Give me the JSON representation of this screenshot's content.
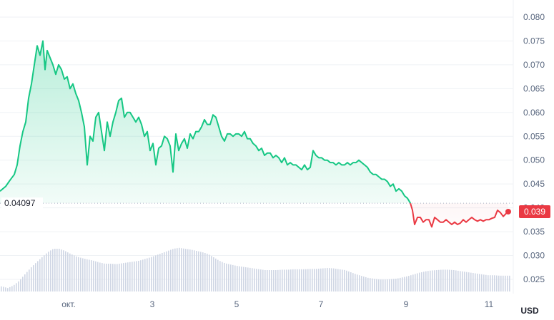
{
  "chart_data": {
    "type": "area",
    "unit_label": "USD",
    "reference_value_label": "0.04097",
    "reference_value": 0.04097,
    "last_value_label": "0.039",
    "last_value": 0.0392,
    "ylim": [
      0.0235,
      0.0815
    ],
    "xlim": [
      0,
      775
    ],
    "y_ticks": [
      {
        "label": "0.080",
        "value": 0.08
      },
      {
        "label": "0.075",
        "value": 0.075
      },
      {
        "label": "0.070",
        "value": 0.07
      },
      {
        "label": "0.065",
        "value": 0.065
      },
      {
        "label": "0.060",
        "value": 0.06
      },
      {
        "label": "0.055",
        "value": 0.055
      },
      {
        "label": "0.050",
        "value": 0.05
      },
      {
        "label": "0.045",
        "value": 0.045
      },
      {
        "label": "0.040",
        "value": 0.04
      },
      {
        "label": "0.035",
        "value": 0.035
      },
      {
        "label": "0.030",
        "value": 0.03
      },
      {
        "label": "0.025",
        "value": 0.025
      }
    ],
    "x_ticks": [
      {
        "label": "окт.",
        "x": 96
      },
      {
        "label": "3",
        "x": 213
      },
      {
        "label": "5",
        "x": 331
      },
      {
        "label": "7",
        "x": 449
      },
      {
        "label": "9",
        "x": 568
      },
      {
        "label": "11",
        "x": 684
      }
    ],
    "series": [
      {
        "colors": {
          "above": "#16c784",
          "below": "#ea3943"
        },
        "points": [
          [
            0,
            0.0435
          ],
          [
            8,
            0.0445
          ],
          [
            14,
            0.0458
          ],
          [
            20,
            0.047
          ],
          [
            24,
            0.049
          ],
          [
            28,
            0.053
          ],
          [
            32,
            0.056
          ],
          [
            36,
            0.058
          ],
          [
            40,
            0.063
          ],
          [
            44,
            0.066
          ],
          [
            48,
            0.07
          ],
          [
            52,
            0.074
          ],
          [
            56,
            0.072
          ],
          [
            60,
            0.075
          ],
          [
            63,
            0.069
          ],
          [
            66,
            0.073
          ],
          [
            70,
            0.0715
          ],
          [
            74,
            0.07
          ],
          [
            78,
            0.068
          ],
          [
            82,
            0.07
          ],
          [
            86,
            0.069
          ],
          [
            90,
            0.067
          ],
          [
            94,
            0.0675
          ],
          [
            98,
            0.065
          ],
          [
            102,
            0.066
          ],
          [
            106,
            0.064
          ],
          [
            110,
            0.0625
          ],
          [
            114,
            0.06
          ],
          [
            118,
            0.057
          ],
          [
            122,
            0.049
          ],
          [
            126,
            0.055
          ],
          [
            130,
            0.054
          ],
          [
            134,
            0.059
          ],
          [
            138,
            0.06
          ],
          [
            142,
            0.056
          ],
          [
            146,
            0.052
          ],
          [
            150,
            0.058
          ],
          [
            154,
            0.055
          ],
          [
            158,
            0.058
          ],
          [
            162,
            0.06
          ],
          [
            166,
            0.0625
          ],
          [
            170,
            0.063
          ],
          [
            174,
            0.059
          ],
          [
            178,
            0.06
          ],
          [
            182,
            0.06
          ],
          [
            186,
            0.059
          ],
          [
            190,
            0.058
          ],
          [
            194,
            0.059
          ],
          [
            198,
            0.0575
          ],
          [
            202,
            0.055
          ],
          [
            206,
            0.056
          ],
          [
            210,
            0.052
          ],
          [
            214,
            0.0535
          ],
          [
            218,
            0.049
          ],
          [
            222,
            0.0525
          ],
          [
            226,
            0.053
          ],
          [
            230,
            0.055
          ],
          [
            234,
            0.0545
          ],
          [
            238,
            0.053
          ],
          [
            242,
            0.0475
          ],
          [
            246,
            0.0555
          ],
          [
            250,
            0.052
          ],
          [
            254,
            0.0535
          ],
          [
            258,
            0.0545
          ],
          [
            262,
            0.0525
          ],
          [
            266,
            0.0555
          ],
          [
            270,
            0.0545
          ],
          [
            274,
            0.056
          ],
          [
            278,
            0.056
          ],
          [
            282,
            0.057
          ],
          [
            286,
            0.0585
          ],
          [
            290,
            0.0575
          ],
          [
            294,
            0.0575
          ],
          [
            298,
            0.0595
          ],
          [
            302,
            0.059
          ],
          [
            306,
            0.057
          ],
          [
            310,
            0.055
          ],
          [
            314,
            0.054
          ],
          [
            318,
            0.0555
          ],
          [
            322,
            0.0555
          ],
          [
            326,
            0.055
          ],
          [
            330,
            0.0555
          ],
          [
            334,
            0.0555
          ],
          [
            338,
            0.055
          ],
          [
            342,
            0.056
          ],
          [
            346,
            0.0545
          ],
          [
            350,
            0.0545
          ],
          [
            354,
            0.0535
          ],
          [
            358,
            0.053
          ],
          [
            362,
            0.052
          ],
          [
            366,
            0.0525
          ],
          [
            370,
            0.051
          ],
          [
            374,
            0.0515
          ],
          [
            378,
            0.0515
          ],
          [
            382,
            0.0505
          ],
          [
            386,
            0.051
          ],
          [
            390,
            0.0505
          ],
          [
            394,
            0.0495
          ],
          [
            398,
            0.0505
          ],
          [
            402,
            0.049
          ],
          [
            406,
            0.0495
          ],
          [
            410,
            0.049
          ],
          [
            414,
            0.049
          ],
          [
            418,
            0.0485
          ],
          [
            422,
            0.048
          ],
          [
            426,
            0.049
          ],
          [
            430,
            0.048
          ],
          [
            434,
            0.0485
          ],
          [
            438,
            0.052
          ],
          [
            442,
            0.051
          ],
          [
            446,
            0.0505
          ],
          [
            450,
            0.0505
          ],
          [
            454,
            0.05
          ],
          [
            458,
            0.05
          ],
          [
            462,
            0.0495
          ],
          [
            466,
            0.0495
          ],
          [
            470,
            0.049
          ],
          [
            474,
            0.0495
          ],
          [
            478,
            0.049
          ],
          [
            482,
            0.049
          ],
          [
            486,
            0.0495
          ],
          [
            490,
            0.049
          ],
          [
            494,
            0.0495
          ],
          [
            498,
            0.0495
          ],
          [
            502,
            0.05
          ],
          [
            506,
            0.0495
          ],
          [
            510,
            0.049
          ],
          [
            514,
            0.0485
          ],
          [
            518,
            0.0475
          ],
          [
            522,
            0.047
          ],
          [
            526,
            0.047
          ],
          [
            530,
            0.0465
          ],
          [
            534,
            0.046
          ],
          [
            538,
            0.046
          ],
          [
            542,
            0.0455
          ],
          [
            546,
            0.0445
          ],
          [
            550,
            0.045
          ],
          [
            554,
            0.0435
          ],
          [
            558,
            0.044
          ],
          [
            562,
            0.0435
          ],
          [
            566,
            0.0425
          ],
          [
            570,
            0.042
          ],
          [
            574,
            0.041
          ],
          [
            577,
            0.0395
          ],
          [
            580,
            0.0365
          ],
          [
            584,
            0.038
          ],
          [
            588,
            0.038
          ],
          [
            592,
            0.037
          ],
          [
            596,
            0.0375
          ],
          [
            600,
            0.0375
          ],
          [
            604,
            0.036
          ],
          [
            608,
            0.038
          ],
          [
            612,
            0.0375
          ],
          [
            616,
            0.037
          ],
          [
            620,
            0.037
          ],
          [
            624,
            0.0375
          ],
          [
            628,
            0.037
          ],
          [
            632,
            0.0365
          ],
          [
            636,
            0.037
          ],
          [
            640,
            0.0365
          ],
          [
            644,
            0.0368
          ],
          [
            648,
            0.0375
          ],
          [
            652,
            0.037
          ],
          [
            656,
            0.0375
          ],
          [
            660,
            0.038
          ],
          [
            664,
            0.0375
          ],
          [
            668,
            0.0372
          ],
          [
            672,
            0.0375
          ],
          [
            676,
            0.0372
          ],
          [
            680,
            0.0375
          ],
          [
            684,
            0.0375
          ],
          [
            688,
            0.0378
          ],
          [
            692,
            0.038
          ],
          [
            696,
            0.0395
          ],
          [
            700,
            0.039
          ],
          [
            704,
            0.0382
          ],
          [
            708,
            0.0388
          ],
          [
            711,
            0.0392
          ]
        ]
      }
    ],
    "volume": [
      [
        2,
        0.12
      ],
      [
        10,
        0.08
      ],
      [
        18,
        0.14
      ],
      [
        26,
        0.25
      ],
      [
        34,
        0.4
      ],
      [
        42,
        0.55
      ],
      [
        50,
        0.68
      ],
      [
        58,
        0.8
      ],
      [
        66,
        0.92
      ],
      [
        74,
        1.0
      ],
      [
        82,
        1.0
      ],
      [
        90,
        0.95
      ],
      [
        98,
        0.88
      ],
      [
        106,
        0.82
      ],
      [
        114,
        0.78
      ],
      [
        122,
        0.75
      ],
      [
        130,
        0.72
      ],
      [
        138,
        0.68
      ],
      [
        146,
        0.65
      ],
      [
        154,
        0.65
      ],
      [
        162,
        0.64
      ],
      [
        170,
        0.66
      ],
      [
        178,
        0.68
      ],
      [
        186,
        0.7
      ],
      [
        194,
        0.72
      ],
      [
        202,
        0.76
      ],
      [
        210,
        0.8
      ],
      [
        218,
        0.85
      ],
      [
        226,
        0.9
      ],
      [
        234,
        0.95
      ],
      [
        242,
        1.0
      ],
      [
        250,
        1.02
      ],
      [
        258,
        1.0
      ],
      [
        266,
        0.98
      ],
      [
        274,
        0.95
      ],
      [
        282,
        0.92
      ],
      [
        290,
        0.88
      ],
      [
        298,
        0.8
      ],
      [
        306,
        0.72
      ],
      [
        314,
        0.66
      ],
      [
        322,
        0.63
      ],
      [
        330,
        0.6
      ],
      [
        338,
        0.58
      ],
      [
        346,
        0.56
      ],
      [
        354,
        0.54
      ],
      [
        362,
        0.52
      ],
      [
        370,
        0.5
      ],
      [
        378,
        0.5
      ],
      [
        386,
        0.5
      ],
      [
        394,
        0.51
      ],
      [
        402,
        0.51
      ],
      [
        410,
        0.52
      ],
      [
        418,
        0.52
      ],
      [
        426,
        0.52
      ],
      [
        434,
        0.53
      ],
      [
        442,
        0.53
      ],
      [
        450,
        0.54
      ],
      [
        458,
        0.55
      ],
      [
        466,
        0.54
      ],
      [
        474,
        0.52
      ],
      [
        482,
        0.5
      ],
      [
        490,
        0.45
      ],
      [
        498,
        0.4
      ],
      [
        506,
        0.36
      ],
      [
        514,
        0.32
      ],
      [
        522,
        0.3
      ],
      [
        530,
        0.28
      ],
      [
        538,
        0.28
      ],
      [
        546,
        0.29
      ],
      [
        554,
        0.3
      ],
      [
        562,
        0.33
      ],
      [
        570,
        0.36
      ],
      [
        578,
        0.4
      ],
      [
        586,
        0.44
      ],
      [
        594,
        0.47
      ],
      [
        602,
        0.49
      ],
      [
        610,
        0.5
      ],
      [
        618,
        0.51
      ],
      [
        626,
        0.51
      ],
      [
        634,
        0.5
      ],
      [
        642,
        0.48
      ],
      [
        650,
        0.46
      ],
      [
        658,
        0.44
      ],
      [
        666,
        0.42
      ],
      [
        674,
        0.4
      ],
      [
        682,
        0.38
      ],
      [
        690,
        0.38
      ],
      [
        698,
        0.37
      ],
      [
        706,
        0.37
      ],
      [
        712,
        0.37
      ]
    ]
  }
}
